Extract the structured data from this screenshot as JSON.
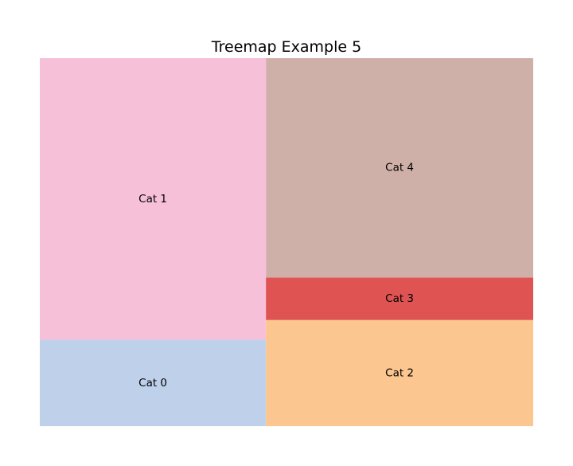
{
  "chart_data": {
    "type": "treemap",
    "title": "Treemap Example 5",
    "categories": [
      "Cat 0",
      "Cat 1",
      "Cat 2",
      "Cat 3",
      "Cat 4"
    ],
    "values": [
      31,
      101,
      45,
      18,
      93
    ],
    "colors": [
      "#bfd1ea",
      "#f6c1d8",
      "#fcc690",
      "#df5353",
      "#cfb0a8"
    ],
    "axis": "off"
  }
}
